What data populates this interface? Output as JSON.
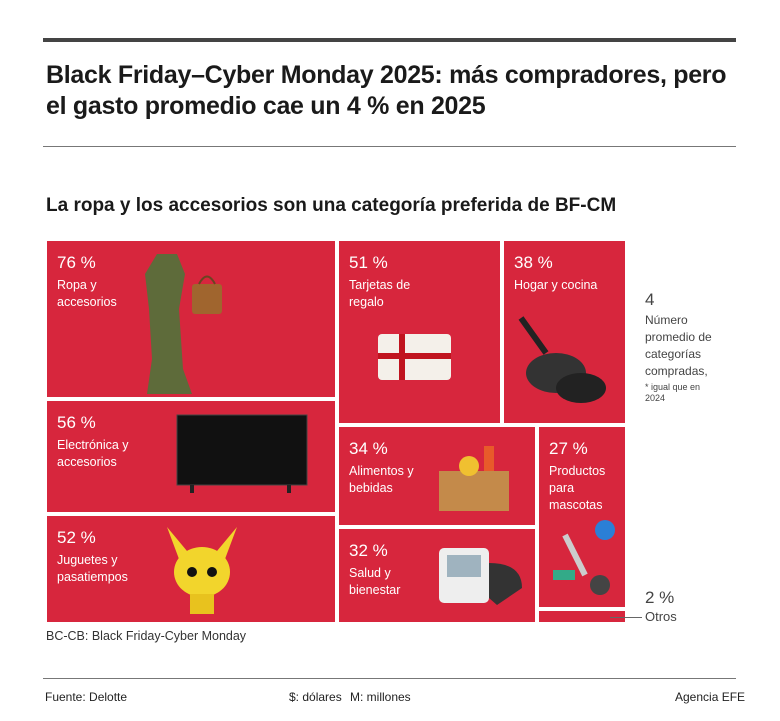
{
  "title": "Black Friday–Cyber Monday 2025: más compradores, pero el gasto promedio cae un 4 % en 2025",
  "subtitle": "La ropa y los accesorios son una categoría preferida de BF-CM",
  "colors": {
    "tile": "#d7263d"
  },
  "tiles": [
    {
      "pct": "76 %",
      "label": "Ropa y accesorios",
      "icon": "dress-bag-icon"
    },
    {
      "pct": "56 %",
      "label": "Electrónica y accesorios",
      "icon": "tv-icon"
    },
    {
      "pct": "52 %",
      "label": "Juguetes y pasatiempos",
      "icon": "toy-icon"
    },
    {
      "pct": "51 %",
      "label": "Tarjetas de regalo",
      "icon": "gift-card-icon"
    },
    {
      "pct": "38 %",
      "label": "Hogar y cocina",
      "icon": "pan-icon"
    },
    {
      "pct": "34 %",
      "label": "Alimentos y bebidas",
      "icon": "food-box-icon"
    },
    {
      "pct": "32 %",
      "label": "Salud y bienestar",
      "icon": "blood-pressure-icon"
    },
    {
      "pct": "27 %",
      "label": "Productos para mascotas",
      "icon": "pet-toy-icon"
    },
    {
      "pct": "2 %",
      "label": "Otros"
    }
  ],
  "side": {
    "value": "4",
    "label": "Número promedio de categorías compradas,",
    "note": "* igual que en 2024"
  },
  "note": "BC-CB: Black Friday-Cyber Monday",
  "footer": {
    "source": "Fuente: Delotte",
    "dollars": "$: dólares",
    "millions": "M: millones",
    "agency": "Agencia EFE"
  }
}
